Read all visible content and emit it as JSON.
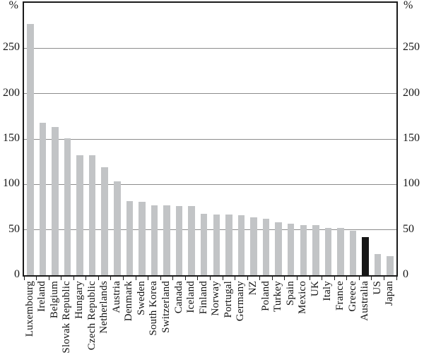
{
  "chart_data": {
    "type": "bar",
    "title": "",
    "unit_left": "%",
    "unit_right": "%",
    "ylim": [
      0,
      300
    ],
    "yticks": [
      0,
      50,
      100,
      150,
      200,
      250
    ],
    "grid": "horizontal",
    "legend_position": "none",
    "highlight_category": "Australia",
    "categories": [
      "Luxembourg",
      "Ireland",
      "Belgium",
      "Slovak Republic",
      "Hungary",
      "Czech Republic",
      "Netherlands",
      "Austria",
      "Denmark",
      "Sweden",
      "South Korea",
      "Switzerland",
      "Canada",
      "Iceland",
      "Finland",
      "Norway",
      "Portugal",
      "Germany",
      "NZ",
      "Poland",
      "Turkey",
      "Spain",
      "Mexico",
      "UK",
      "Italy",
      "France",
      "Greece",
      "Australia",
      "US",
      "Japan"
    ],
    "values": [
      277,
      168,
      163,
      151,
      132,
      132,
      119,
      103,
      82,
      81,
      77,
      77,
      76,
      76,
      68,
      67,
      67,
      66,
      64,
      62,
      58,
      57,
      55,
      55,
      52,
      52,
      49,
      42,
      23,
      21
    ],
    "colors": {
      "bar": "#c2c4c6",
      "highlight": "#161616",
      "gridline": "#8c8c8c",
      "axis": "#1a1a1a",
      "background": "#ffffff"
    }
  }
}
